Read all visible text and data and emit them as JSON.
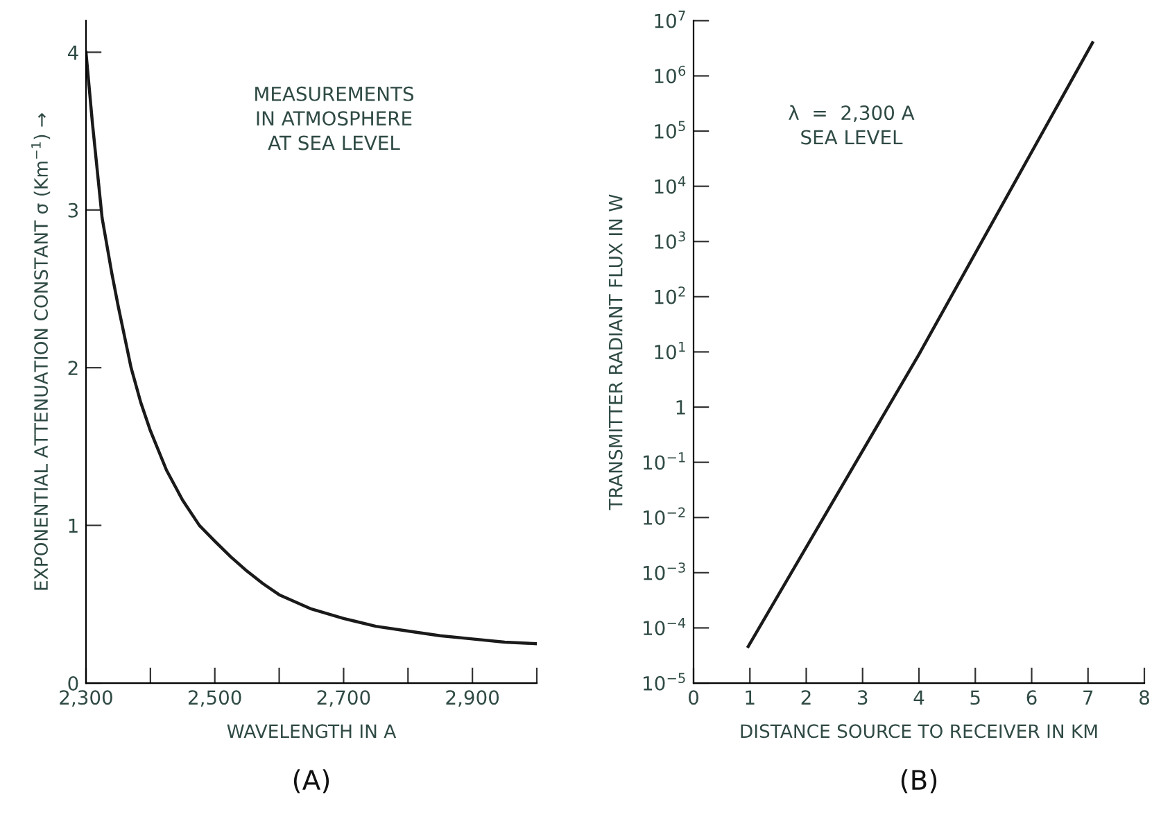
{
  "chart_data": [
    {
      "type": "line",
      "xlabel": "WAVELENGTH IN A",
      "ylabel": "EXPONENTIAL ATTENUATION CONSTANT σ (Km$^{−1}$) →",
      "x": [
        2300,
        2310,
        2325,
        2340,
        2350,
        2370,
        2385,
        2400,
        2425,
        2450,
        2476,
        2500,
        2525,
        2550,
        2575,
        2600,
        2650,
        2700,
        2750,
        2800,
        2850,
        2900,
        2950,
        3000
      ],
      "series": [
        {
          "color": "#1a1a1a",
          "values": [
            4.0,
            3.55,
            2.95,
            2.6,
            2.39,
            2.0,
            1.78,
            1.6,
            1.35,
            1.16,
            1.0,
            0.9,
            0.8,
            0.71,
            0.63,
            0.56,
            0.47,
            0.41,
            0.36,
            0.33,
            0.3,
            0.28,
            0.26,
            0.25
          ]
        }
      ],
      "xlim": [
        2300,
        3000
      ],
      "ylim": [
        0,
        4.2
      ],
      "xticks": [
        {
          "value": 2300,
          "label": "2,300"
        },
        {
          "value": 2400,
          "label": null
        },
        {
          "value": 2500,
          "label": "2,500"
        },
        {
          "value": 2600,
          "label": null
        },
        {
          "value": 2700,
          "label": "2,700"
        },
        {
          "value": 2800,
          "label": null
        },
        {
          "value": 2900,
          "label": "2,900"
        },
        {
          "value": 3000,
          "label": null
        }
      ],
      "yticks": [
        0,
        1,
        2,
        3,
        4
      ],
      "annotations": [
        "MEASUREMENTS\nIN ATMOSPHERE\nAT SEA LEVEL",
        "(A)"
      ]
    },
    {
      "type": "line",
      "xlabel": "DISTANCE SOURCE TO RECEIVER IN KM",
      "ylabel": "TRANSMITTER RADIANT FLUX IN W",
      "log": "y",
      "x": [
        0.97,
        4,
        7.08
      ],
      "series": [
        {
          "color": "#1a1a1a",
          "values": [
            4.6e-05,
            9,
            4000000.0
          ]
        }
      ],
      "xlim": [
        0,
        8
      ],
      "ylim": [
        1e-05,
        10000000.0
      ],
      "xticks": [
        0,
        1,
        2,
        3,
        4,
        5,
        6,
        7,
        8
      ],
      "yticks": [
        {
          "value": 1e-05,
          "label": "10$^{−5}$"
        },
        {
          "value": 0.0001,
          "label": "10$^{−4}$"
        },
        {
          "value": 0.001,
          "label": "10$^{−3}$"
        },
        {
          "value": 0.01,
          "label": "10$^{−2}$"
        },
        {
          "value": 0.1,
          "label": "10$^{−1}$"
        },
        1,
        {
          "value": 10,
          "label": "10$^{1}$"
        },
        {
          "value": 100,
          "label": "10$^{2}$"
        },
        {
          "value": 1000,
          "label": "10$^{3}$"
        },
        {
          "value": 10000.0,
          "label": "10$^{4}$"
        },
        {
          "value": 100000.0,
          "label": "10$^{5}$"
        },
        {
          "value": 1000000.0,
          "label": "10$^{6}$"
        },
        {
          "value": 10000000.0,
          "label": "10$^{7}$"
        }
      ],
      "annotations": [
        "λ  =  2,300 A\nSEA LEVEL",
        "(B)"
      ]
    }
  ]
}
